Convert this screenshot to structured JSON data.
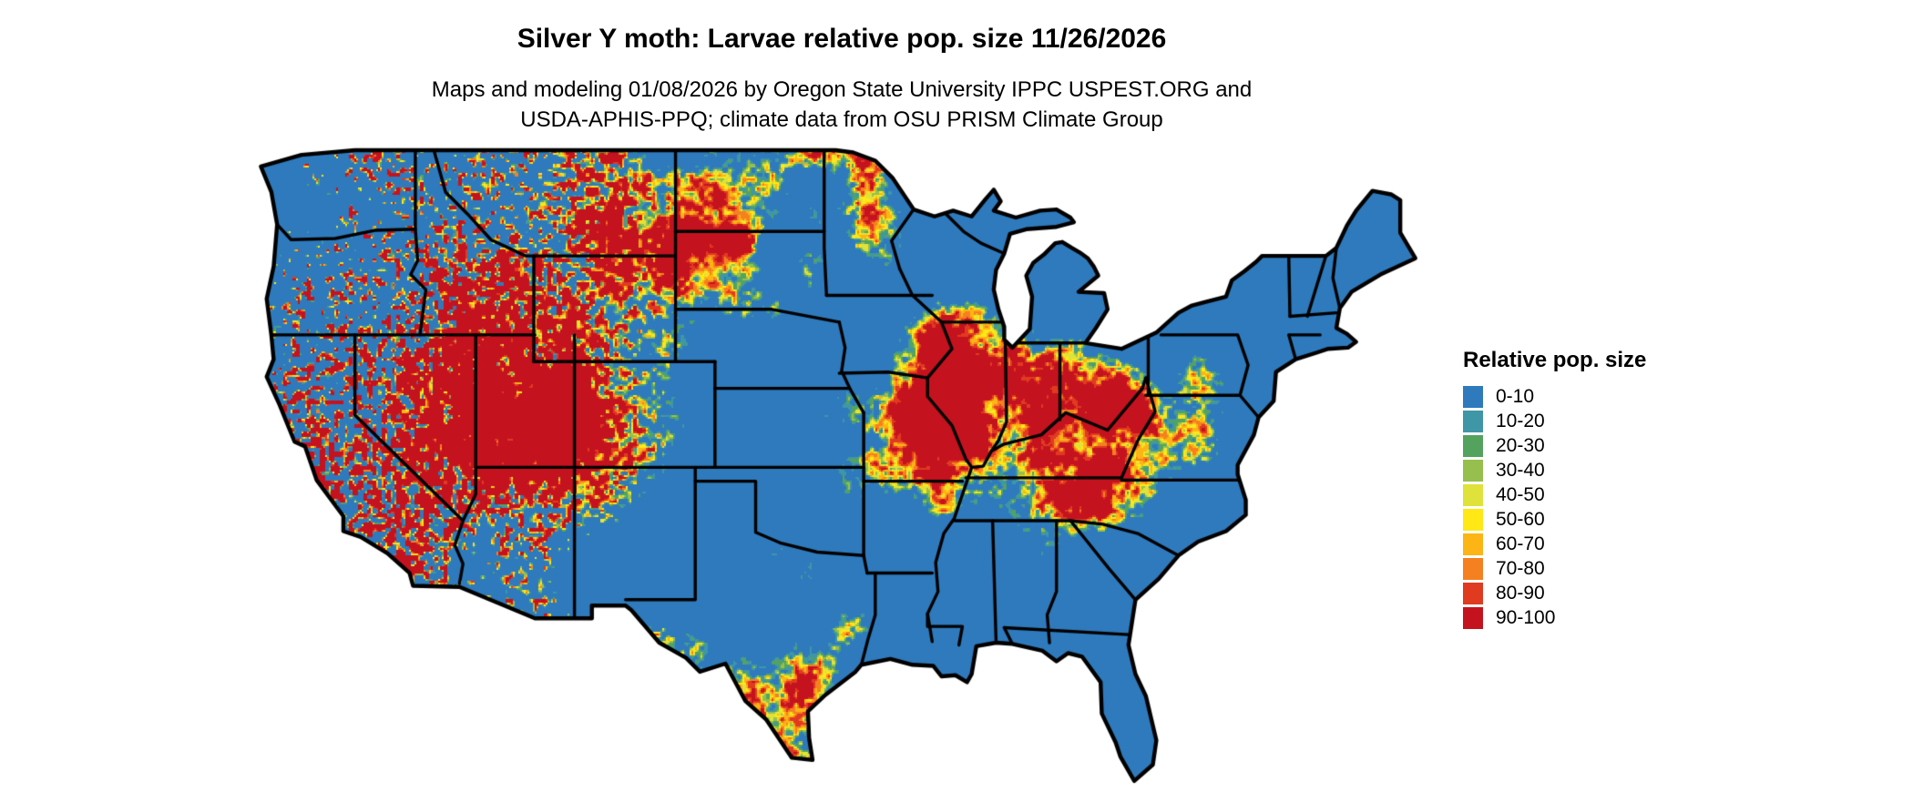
{
  "header": {
    "title": "Silver Y moth: Larvae relative pop. size 11/26/2026",
    "subtitle_line1": "Maps and modeling 01/08/2026 by Oregon State University IPPC USPEST.ORG and",
    "subtitle_line2": "USDA-APHIS-PPQ; climate data from OSU PRISM Climate Group"
  },
  "legend": {
    "title": "Relative pop. size",
    "items": [
      {
        "label": "0-10",
        "color": "#2e7abc"
      },
      {
        "label": "10-20",
        "color": "#3f96a6"
      },
      {
        "label": "20-30",
        "color": "#53a35f"
      },
      {
        "label": "30-40",
        "color": "#97bf4e"
      },
      {
        "label": "40-50",
        "color": "#dfe23a"
      },
      {
        "label": "50-60",
        "color": "#ffe816"
      },
      {
        "label": "60-70",
        "color": "#fcb514"
      },
      {
        "label": "70-80",
        "color": "#f58020"
      },
      {
        "label": "80-90",
        "color": "#e03a21"
      },
      {
        "label": "90-100",
        "color": "#c5121f"
      }
    ]
  },
  "colors": {
    "background": "#ffffff",
    "border": "#000000"
  }
}
